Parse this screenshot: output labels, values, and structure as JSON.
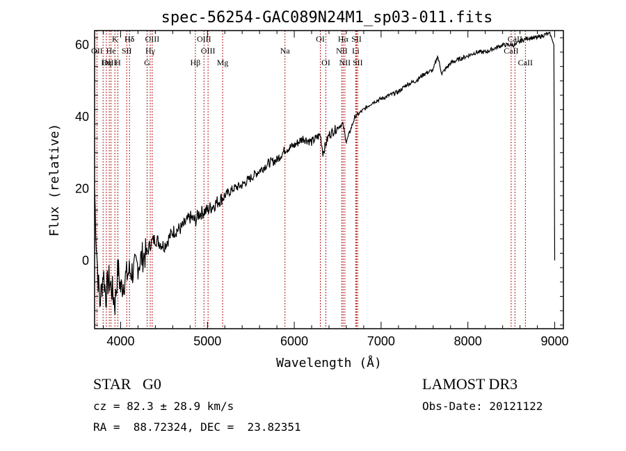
{
  "chart_data": {
    "type": "line",
    "title": "spec-56254-GAC089N24M1_sp03-011.fits",
    "xlabel": "Wavelength (Å)",
    "ylabel": "Flux (relative)",
    "xlim": [
      3700,
      9100
    ],
    "ylim": [
      -19,
      64
    ],
    "x_ticks": [
      4000,
      5000,
      6000,
      7000,
      8000,
      9000
    ],
    "x_tick_labels": [
      "4000",
      "5000",
      "6000",
      "7000",
      "8000",
      "9000"
    ],
    "y_ticks": [
      0,
      20,
      40,
      60
    ],
    "y_tick_labels": [
      "0",
      "20",
      "40",
      "60"
    ],
    "series": [
      {
        "name": "flux",
        "x": [
          3700,
          3720,
          3740,
          3760,
          3780,
          3800,
          3830,
          3860,
          3900,
          3935,
          3970,
          4000,
          4050,
          4100,
          4150,
          4200,
          4250,
          4300,
          4350,
          4400,
          4500,
          4600,
          4700,
          4800,
          4860,
          4900,
          5000,
          5100,
          5200,
          5300,
          5400,
          5500,
          5600,
          5700,
          5800,
          5900,
          6000,
          6100,
          6200,
          6300,
          6330,
          6400,
          6500,
          6560,
          6600,
          6700,
          6800,
          6900,
          7000,
          7100,
          7200,
          7300,
          7400,
          7500,
          7600,
          7650,
          7700,
          7800,
          7900,
          8000,
          8100,
          8200,
          8300,
          8400,
          8500,
          8550,
          8600,
          8700,
          8800,
          8900,
          8950,
          8990,
          9000
        ],
        "y": [
          20,
          5,
          -5,
          -12,
          -8,
          -3,
          -10,
          -5,
          -8,
          -12,
          -2,
          -8,
          -5,
          -3,
          -3,
          -1,
          1,
          2,
          5,
          6,
          4,
          8,
          9,
          12,
          11,
          13,
          14,
          16,
          18,
          20,
          21,
          23,
          25,
          27,
          28,
          31,
          32,
          34,
          33,
          35,
          30,
          35,
          37,
          38,
          33,
          40,
          42,
          44,
          45,
          46,
          47,
          49,
          50,
          52,
          53,
          57,
          52,
          55,
          56,
          57,
          58,
          58,
          59,
          60,
          60,
          60,
          61,
          62,
          62,
          63,
          63,
          60,
          0
        ]
      }
    ],
    "lines_row1": [
      {
        "label": "Hδ",
        "wavelength": 4102
      },
      {
        "label": "K",
        "wavelength": 3934
      },
      {
        "label": "Hδ",
        "wavelength": 4102
      },
      {
        "label": "OIII",
        "wavelength": 4364
      },
      {
        "label": "OIII",
        "wavelength": 4960
      },
      {
        "label": "OI",
        "wavelength": 6300
      },
      {
        "label": "Hα",
        "wavelength": 6563
      },
      {
        "label": "SII",
        "wavelength": 6717
      },
      {
        "label": "CaII",
        "wavelength": 8542
      }
    ],
    "lines_row2": [
      {
        "label": "OII",
        "wavelength": 3727
      },
      {
        "label": "He",
        "wavelength": 3889
      },
      {
        "label": "SII",
        "wavelength": 4070
      },
      {
        "label": "Hγ",
        "wavelength": 4341
      },
      {
        "label": "OIII",
        "wavelength": 5007
      },
      {
        "label": "Na",
        "wavelength": 5893
      },
      {
        "label": "NII",
        "wavelength": 6548
      },
      {
        "label": "Li",
        "wavelength": 6708
      },
      {
        "label": "CaII",
        "wavelength": 8498
      }
    ],
    "lines_row3": [
      {
        "label": "OIII",
        "wavelength": 3869
      },
      {
        "label": "Hη",
        "wavelength": 3835
      },
      {
        "label": "H",
        "wavelength": 3968
      },
      {
        "label": "G",
        "wavelength": 4305
      },
      {
        "label": "Hβ",
        "wavelength": 4861
      },
      {
        "label": "Mg",
        "wavelength": 5175
      },
      {
        "label": "OI",
        "wavelength": 6364
      },
      {
        "label": "NII",
        "wavelength": 6583
      },
      {
        "label": "SII",
        "wavelength": 6731
      },
      {
        "label": "CaII",
        "wavelength": 8662
      }
    ],
    "vlines": [
      3727,
      3798,
      3835,
      3869,
      3889,
      3934,
      3968,
      4070,
      4102,
      4305,
      4341,
      4364,
      4861,
      4960,
      5007,
      5175,
      5893,
      6300,
      6364,
      6548,
      6563,
      6583,
      6708,
      6717,
      6731,
      8498,
      8542,
      8662
    ],
    "line_color": "#000000",
    "marker_color": "#b01010"
  },
  "footer": {
    "object": "STAR   G0",
    "survey": "LAMOST DR3",
    "cz": "cz = 82.3 ± 28.9 km/s",
    "obs_date": "Obs-Date: 20121122",
    "coords": "RA =  88.72324, DEC =  23.82351"
  }
}
